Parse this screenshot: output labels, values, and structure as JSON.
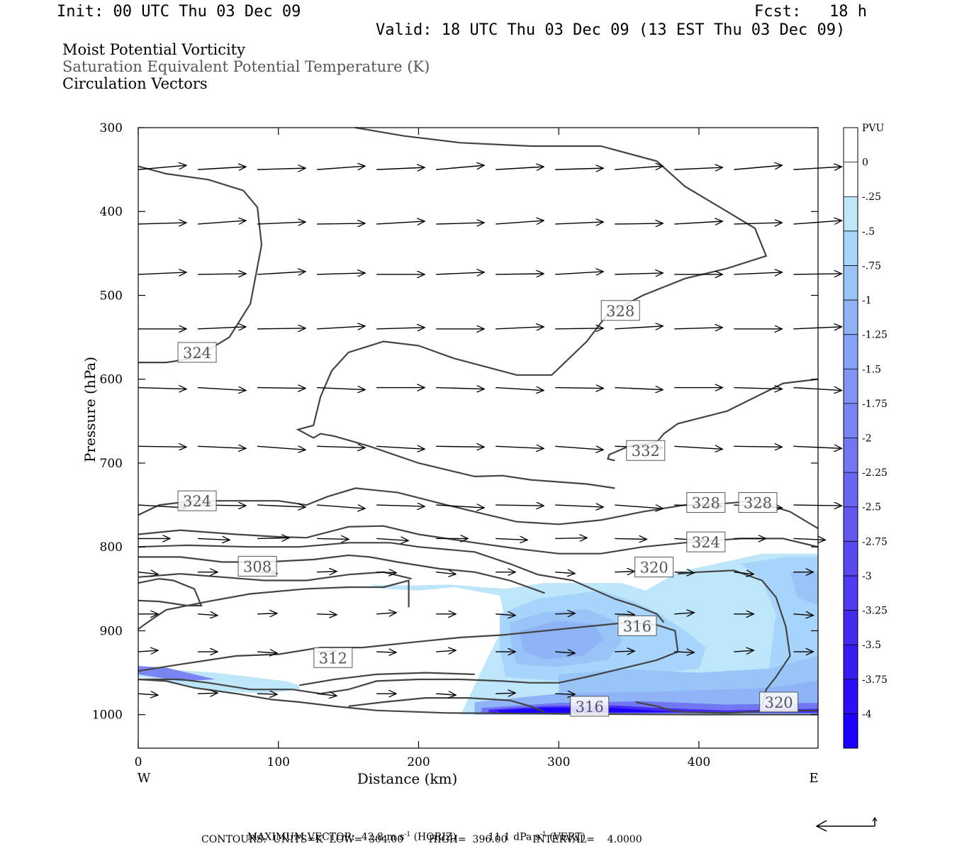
{
  "header": {
    "init": "Init: 00 UTC Thu 03 Dec 09",
    "fcst": "Fcst:   18 h",
    "valid": "Valid: 18 UTC Thu 03 Dec 09 (13 EST Thu 03 Dec 09)"
  },
  "titles": {
    "line1": "Moist Potential Vorticity",
    "line2": "Saturation Equivalent Potential Temperature (K)",
    "line3": "Circulation Vectors"
  },
  "chart_data": {
    "type": "contour-cross-section",
    "xlabel": "Distance (km)",
    "ylabel": "Pressure (hPa)",
    "xlim": [
      0,
      485
    ],
    "ylim": [
      1040,
      300
    ],
    "x_ticks": [
      0,
      100,
      200,
      300,
      400
    ],
    "y_ticks": [
      300,
      400,
      500,
      600,
      700,
      800,
      900,
      1000
    ],
    "x_end_labels": {
      "left": "W",
      "right": "E"
    },
    "colorbar": {
      "unit": "PVU",
      "levels": [
        "0",
        "-.25",
        "-.5",
        "-.75",
        "-1",
        "-1.25",
        "-1.5",
        "-1.75",
        "-2",
        "-2.25",
        "-2.5",
        "-2.75",
        "-3",
        "-3.25",
        "-3.5",
        "-3.75",
        "-4"
      ],
      "colors": [
        "#ffffff",
        "#ffffff",
        "#bde6fb",
        "#a6d4fa",
        "#98c4f8",
        "#8eb3f7",
        "#87a3f6",
        "#8194f5",
        "#7a85f4",
        "#7376f3",
        "#6b66f2",
        "#6357f2",
        "#5a48f2",
        "#5039f2",
        "#452af3",
        "#3a1bf4",
        "#2f0cf6",
        "#1a00ff"
      ]
    },
    "contour_labels": [
      {
        "text": "324",
        "x": 42,
        "p": 568
      },
      {
        "text": "328",
        "x": 344,
        "p": 518
      },
      {
        "text": "332",
        "x": 362,
        "p": 685
      },
      {
        "text": "324",
        "x": 42,
        "p": 745
      },
      {
        "text": "328",
        "x": 405,
        "p": 747
      },
      {
        "text": "328",
        "x": 442,
        "p": 747
      },
      {
        "text": "324",
        "x": 405,
        "p": 794
      },
      {
        "text": "308",
        "x": 85,
        "p": 823
      },
      {
        "text": "320",
        "x": 368,
        "p": 824
      },
      {
        "text": "316",
        "x": 356,
        "p": 894
      },
      {
        "text": "312",
        "x": 139,
        "p": 932
      },
      {
        "text": "320",
        "x": 457,
        "p": 985
      },
      {
        "text": "316",
        "x": 322,
        "p": 990
      }
    ],
    "footer": {
      "max_vector_label": "MAXIMUM VECTOR:",
      "max_horiz": "42.8 m s",
      "horiz_tag": "(HORIZ)",
      "max_vert": "11.1 dPa s",
      "vert_tag": "(VERT)",
      "exponent": "-1",
      "contours_line": "CONTOURS:  UNITS=K  LOW=  304.00        HIGH=  396.00        INTERVAL=    4.0000"
    }
  }
}
